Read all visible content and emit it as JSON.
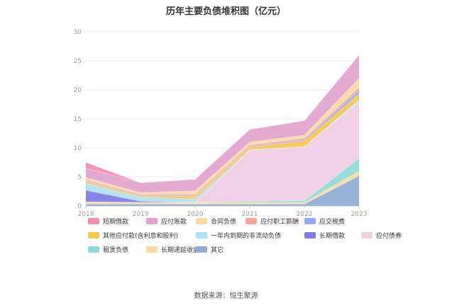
{
  "chart_data": {
    "type": "area",
    "stacked": true,
    "title": "历年主要负债堆积图（亿元）",
    "x": [
      "2018",
      "2019",
      "2020",
      "2021",
      "2022",
      "2023"
    ],
    "yticks": [
      "0",
      "5",
      "10",
      "15",
      "20",
      "25",
      "30"
    ],
    "ylim": [
      0,
      30
    ],
    "grid": true,
    "legend_position": "bottom",
    "series": [
      {
        "name": "其它",
        "color": "#8eacd4",
        "values": [
          0.3,
          0.3,
          0.3,
          0.3,
          0.3,
          5.2
        ]
      },
      {
        "name": "长期递延收益",
        "color": "#f9d9a1",
        "values": [
          0.4,
          0.3,
          0.3,
          0.3,
          0.3,
          0.8
        ]
      },
      {
        "name": "租赁负债",
        "color": "#8fdad9",
        "values": [
          0.0,
          0.0,
          0.0,
          0.2,
          0.3,
          2.2
        ]
      },
      {
        "name": "应付债券",
        "color": "#f0cde4",
        "values": [
          0.0,
          0.0,
          0.0,
          8.8,
          9.3,
          9.8
        ]
      },
      {
        "name": "长期借款",
        "color": "#7e7ae8",
        "values": [
          2.0,
          0.2,
          0.0,
          0.0,
          0.0,
          0.0
        ]
      },
      {
        "name": "一年内到期的非流动负债",
        "color": "#ade1f3",
        "values": [
          1.2,
          0.7,
          0.6,
          0.1,
          0.0,
          0.3
        ]
      },
      {
        "name": "其他应付款(含利息和股利)",
        "color": "#f7c64a",
        "values": [
          0.3,
          0.2,
          0.4,
          0.4,
          1.0,
          1.0
        ]
      },
      {
        "name": "应交税费",
        "color": "#96aaf3",
        "values": [
          0.1,
          0.1,
          0.1,
          0.1,
          0.2,
          0.6
        ]
      },
      {
        "name": "应付职工薪酬",
        "color": "#f7a69a",
        "values": [
          0.2,
          0.2,
          0.3,
          0.3,
          0.3,
          0.5
        ]
      },
      {
        "name": "合同负债",
        "color": "#fbd9a3",
        "values": [
          0.4,
          0.3,
          0.6,
          0.5,
          0.5,
          1.6
        ]
      },
      {
        "name": "应付账款",
        "color": "#e2a2cd",
        "values": [
          1.6,
          1.7,
          2.0,
          2.2,
          2.5,
          4.0
        ]
      },
      {
        "name": "短期借款",
        "color": "#f78bb4",
        "values": [
          1.0,
          0.0,
          0.0,
          0.0,
          0.0,
          0.0
        ]
      }
    ],
    "legend": [
      {
        "name": "短期借款",
        "color": "#f78bb4"
      },
      {
        "name": "应付账款",
        "color": "#e2a2cd"
      },
      {
        "name": "合同负债",
        "color": "#fbd9a3"
      },
      {
        "name": "应付职工薪酬",
        "color": "#f7a69a"
      },
      {
        "name": "应交税费",
        "color": "#96aaf3"
      },
      {
        "name": "其他应付款(含利息和股利)",
        "color": "#f7c64a"
      },
      {
        "name": "一年内到期的非流动负债",
        "color": "#ade1f3"
      },
      {
        "name": "长期借款",
        "color": "#7e7ae8"
      },
      {
        "name": "应付债券",
        "color": "#f0cde4"
      },
      {
        "name": "租赁负债",
        "color": "#8fdad9"
      },
      {
        "name": "长期递延收益",
        "color": "#f9d9a1"
      },
      {
        "name": "其它",
        "color": "#8eacd4"
      }
    ],
    "source": "数据来源：恒生聚源"
  }
}
